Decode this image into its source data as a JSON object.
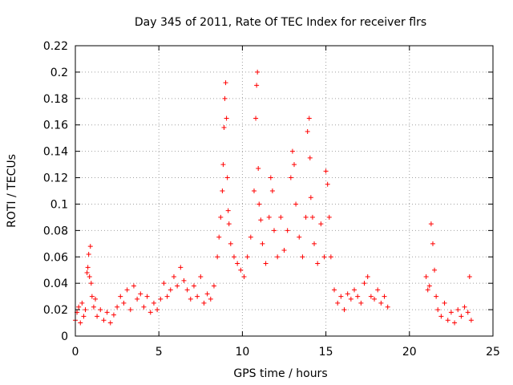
{
  "chart_data": {
    "type": "scatter",
    "title": "Day 345 of 2011, Rate Of TEC Index for receiver flrs",
    "xlabel": "GPS time / hours",
    "ylabel": "ROTI / TECUs",
    "xlim": [
      0,
      25
    ],
    "ylim": [
      0,
      0.22
    ],
    "xticks": [
      0,
      5,
      10,
      15,
      20,
      25
    ],
    "xtick_labels": [
      "0",
      "5",
      "10",
      "15",
      "20",
      "25"
    ],
    "yticks": [
      0,
      0.02,
      0.04,
      0.06,
      0.08,
      0.1,
      0.12,
      0.14,
      0.16,
      0.18,
      0.2,
      0.22
    ],
    "ytick_labels": [
      "0",
      "0.02",
      "0.04",
      "0.06",
      "0.08",
      "0.1",
      "0.12",
      "0.14",
      "0.16",
      "0.18",
      "0.2",
      "0.22"
    ],
    "grid": true,
    "legend": "none",
    "marker": "plus",
    "marker_color": "#ff0000",
    "series": [
      {
        "points": [
          [
            0.0,
            0.012
          ],
          [
            0.1,
            0.018
          ],
          [
            0.2,
            0.022
          ],
          [
            0.3,
            0.01
          ],
          [
            0.4,
            0.025
          ],
          [
            0.5,
            0.015
          ],
          [
            0.6,
            0.02
          ],
          [
            0.7,
            0.048
          ],
          [
            0.75,
            0.052
          ],
          [
            0.8,
            0.062
          ],
          [
            0.85,
            0.045
          ],
          [
            0.9,
            0.068
          ],
          [
            0.95,
            0.04
          ],
          [
            1.0,
            0.03
          ],
          [
            1.1,
            0.022
          ],
          [
            1.2,
            0.028
          ],
          [
            1.3,
            0.015
          ],
          [
            1.5,
            0.02
          ],
          [
            1.7,
            0.012
          ],
          [
            1.9,
            0.018
          ],
          [
            2.1,
            0.01
          ],
          [
            2.3,
            0.016
          ],
          [
            2.5,
            0.022
          ],
          [
            2.7,
            0.03
          ],
          [
            2.9,
            0.025
          ],
          [
            3.1,
            0.035
          ],
          [
            3.3,
            0.02
          ],
          [
            3.5,
            0.038
          ],
          [
            3.7,
            0.028
          ],
          [
            3.9,
            0.032
          ],
          [
            4.1,
            0.022
          ],
          [
            4.3,
            0.03
          ],
          [
            4.5,
            0.018
          ],
          [
            4.7,
            0.025
          ],
          [
            4.9,
            0.02
          ],
          [
            5.1,
            0.028
          ],
          [
            5.3,
            0.04
          ],
          [
            5.5,
            0.03
          ],
          [
            5.7,
            0.035
          ],
          [
            5.9,
            0.045
          ],
          [
            6.1,
            0.038
          ],
          [
            6.3,
            0.052
          ],
          [
            6.5,
            0.042
          ],
          [
            6.7,
            0.035
          ],
          [
            6.9,
            0.028
          ],
          [
            7.1,
            0.038
          ],
          [
            7.3,
            0.03
          ],
          [
            7.5,
            0.045
          ],
          [
            7.7,
            0.025
          ],
          [
            7.9,
            0.032
          ],
          [
            8.1,
            0.028
          ],
          [
            8.3,
            0.038
          ],
          [
            8.5,
            0.06
          ],
          [
            8.6,
            0.075
          ],
          [
            8.7,
            0.09
          ],
          [
            8.8,
            0.11
          ],
          [
            8.85,
            0.13
          ],
          [
            8.9,
            0.158
          ],
          [
            8.95,
            0.18
          ],
          [
            9.0,
            0.192
          ],
          [
            9.05,
            0.165
          ],
          [
            9.1,
            0.12
          ],
          [
            9.15,
            0.095
          ],
          [
            9.2,
            0.085
          ],
          [
            9.3,
            0.07
          ],
          [
            9.5,
            0.06
          ],
          [
            9.7,
            0.055
          ],
          [
            9.9,
            0.05
          ],
          [
            10.1,
            0.045
          ],
          [
            10.3,
            0.06
          ],
          [
            10.5,
            0.075
          ],
          [
            10.7,
            0.11
          ],
          [
            10.8,
            0.165
          ],
          [
            10.85,
            0.19
          ],
          [
            10.9,
            0.2
          ],
          [
            10.95,
            0.127
          ],
          [
            11.0,
            0.1
          ],
          [
            11.1,
            0.088
          ],
          [
            11.2,
            0.07
          ],
          [
            11.4,
            0.055
          ],
          [
            11.6,
            0.09
          ],
          [
            11.7,
            0.12
          ],
          [
            11.8,
            0.11
          ],
          [
            11.9,
            0.08
          ],
          [
            12.1,
            0.06
          ],
          [
            12.3,
            0.09
          ],
          [
            12.5,
            0.065
          ],
          [
            12.7,
            0.08
          ],
          [
            12.9,
            0.12
          ],
          [
            13.0,
            0.14
          ],
          [
            13.1,
            0.13
          ],
          [
            13.2,
            0.1
          ],
          [
            13.4,
            0.075
          ],
          [
            13.6,
            0.06
          ],
          [
            13.8,
            0.09
          ],
          [
            13.9,
            0.155
          ],
          [
            14.0,
            0.165
          ],
          [
            14.05,
            0.135
          ],
          [
            14.1,
            0.105
          ],
          [
            14.2,
            0.09
          ],
          [
            14.3,
            0.07
          ],
          [
            14.5,
            0.055
          ],
          [
            14.7,
            0.085
          ],
          [
            14.9,
            0.06
          ],
          [
            15.0,
            0.125
          ],
          [
            15.1,
            0.115
          ],
          [
            15.2,
            0.09
          ],
          [
            15.3,
            0.06
          ],
          [
            15.5,
            0.035
          ],
          [
            15.7,
            0.025
          ],
          [
            15.9,
            0.03
          ],
          [
            16.1,
            0.02
          ],
          [
            16.3,
            0.032
          ],
          [
            16.5,
            0.028
          ],
          [
            16.7,
            0.035
          ],
          [
            16.9,
            0.03
          ],
          [
            17.1,
            0.025
          ],
          [
            17.3,
            0.04
          ],
          [
            17.5,
            0.045
          ],
          [
            17.7,
            0.03
          ],
          [
            17.9,
            0.028
          ],
          [
            18.1,
            0.035
          ],
          [
            18.3,
            0.025
          ],
          [
            18.5,
            0.03
          ],
          [
            18.7,
            0.022
          ],
          [
            21.0,
            0.045
          ],
          [
            21.1,
            0.035
          ],
          [
            21.2,
            0.038
          ],
          [
            21.3,
            0.085
          ],
          [
            21.4,
            0.07
          ],
          [
            21.5,
            0.05
          ],
          [
            21.6,
            0.03
          ],
          [
            21.7,
            0.02
          ],
          [
            21.9,
            0.015
          ],
          [
            22.1,
            0.025
          ],
          [
            22.3,
            0.012
          ],
          [
            22.5,
            0.018
          ],
          [
            22.7,
            0.01
          ],
          [
            22.9,
            0.02
          ],
          [
            23.1,
            0.015
          ],
          [
            23.3,
            0.022
          ],
          [
            23.5,
            0.018
          ],
          [
            23.6,
            0.045
          ],
          [
            23.7,
            0.012
          ]
        ]
      }
    ]
  }
}
